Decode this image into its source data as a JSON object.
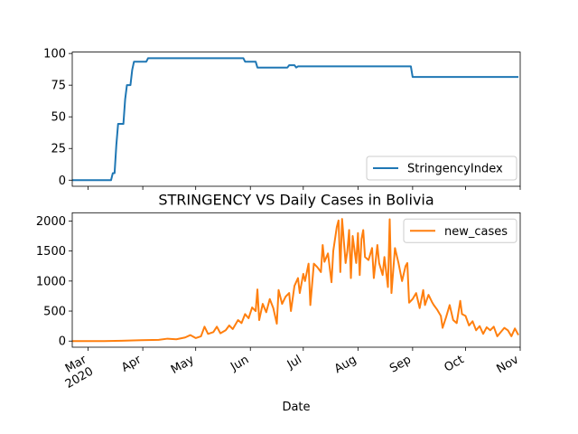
{
  "chart_data": [
    {
      "type": "line",
      "x": [
        "2020-02-21",
        "2020-03-14",
        "2020-03-15",
        "2020-03-16",
        "2020-03-17",
        "2020-03-18",
        "2020-03-21",
        "2020-03-22",
        "2020-03-23",
        "2020-03-25",
        "2020-03-26",
        "2020-03-27",
        "2020-04-03",
        "2020-04-04",
        "2020-05-28",
        "2020-05-29",
        "2020-06-04",
        "2020-06-05",
        "2020-06-22",
        "2020-06-23",
        "2020-06-26",
        "2020-06-27",
        "2020-06-28",
        "2020-08-31",
        "2020-09-01",
        "2020-10-31"
      ],
      "series": [
        {
          "name": "StringencyIndex",
          "color": "#1f77b4",
          "values": [
            0,
            0,
            5.56,
            5.56,
            27.78,
            44.44,
            44.44,
            63.89,
            75,
            75,
            87.04,
            93.52,
            93.52,
            96.3,
            96.3,
            93.52,
            93.52,
            88.89,
            88.89,
            90.74,
            90.74,
            88.89,
            89.81,
            89.81,
            81.48,
            81.48
          ]
        }
      ],
      "xlim": [
        "2020-02-21",
        "2020-11-01"
      ],
      "xticks": [
        "2020-03-01",
        "2020-04-01",
        "2020-05-01",
        "2020-06-01",
        "2020-07-01",
        "2020-08-01",
        "2020-09-01",
        "2020-10-01",
        "2020-11-01"
      ],
      "ylim": [
        -4.8,
        101.1
      ],
      "yticks": [
        0,
        25,
        50,
        75,
        100
      ],
      "legend": "lower right"
    },
    {
      "type": "line",
      "title": "STRINGENCY VS Daily Cases in Bolivia",
      "xlabel": "Date",
      "x": [
        "2020-02-21",
        "2020-03-10",
        "2020-03-20",
        "2020-03-31",
        "2020-04-10",
        "2020-04-15",
        "2020-04-20",
        "2020-04-25",
        "2020-04-28",
        "2020-05-01",
        "2020-05-04",
        "2020-05-06",
        "2020-05-08",
        "2020-05-11",
        "2020-05-13",
        "2020-05-15",
        "2020-05-18",
        "2020-05-20",
        "2020-05-22",
        "2020-05-25",
        "2020-05-27",
        "2020-05-29",
        "2020-05-31",
        "2020-06-02",
        "2020-06-04",
        "2020-06-05",
        "2020-06-06",
        "2020-06-08",
        "2020-06-10",
        "2020-06-12",
        "2020-06-14",
        "2020-06-16",
        "2020-06-17",
        "2020-06-19",
        "2020-06-21",
        "2020-06-23",
        "2020-06-24",
        "2020-06-26",
        "2020-06-28",
        "2020-06-29",
        "2020-07-01",
        "2020-07-02",
        "2020-07-04",
        "2020-07-05",
        "2020-07-07",
        "2020-07-09",
        "2020-07-11",
        "2020-07-12",
        "2020-07-13",
        "2020-07-15",
        "2020-07-17",
        "2020-07-18",
        "2020-07-20",
        "2020-07-21",
        "2020-07-22",
        "2020-07-23",
        "2020-07-25",
        "2020-07-26",
        "2020-07-27",
        "2020-07-28",
        "2020-07-29",
        "2020-07-31",
        "2020-08-01",
        "2020-08-02",
        "2020-08-03",
        "2020-08-04",
        "2020-08-05",
        "2020-08-07",
        "2020-08-09",
        "2020-08-10",
        "2020-08-12",
        "2020-08-13",
        "2020-08-15",
        "2020-08-16",
        "2020-08-18",
        "2020-08-19",
        "2020-08-20",
        "2020-08-22",
        "2020-08-24",
        "2020-08-26",
        "2020-08-28",
        "2020-08-29",
        "2020-08-30",
        "2020-09-01",
        "2020-09-03",
        "2020-09-05",
        "2020-09-07",
        "2020-09-08",
        "2020-09-10",
        "2020-09-12",
        "2020-09-13",
        "2020-09-15",
        "2020-09-17",
        "2020-09-18",
        "2020-09-20",
        "2020-09-22",
        "2020-09-24",
        "2020-09-26",
        "2020-09-28",
        "2020-09-29",
        "2020-10-01",
        "2020-10-03",
        "2020-10-05",
        "2020-10-07",
        "2020-10-09",
        "2020-10-11",
        "2020-10-13",
        "2020-10-15",
        "2020-10-17",
        "2020-10-19",
        "2020-10-21",
        "2020-10-23",
        "2020-10-25",
        "2020-10-27",
        "2020-10-29",
        "2020-10-31"
      ],
      "series": [
        {
          "name": "new_cases",
          "color": "#ff7f0e",
          "values": [
            0,
            0,
            5,
            15,
            20,
            40,
            30,
            60,
            100,
            50,
            80,
            240,
            120,
            150,
            240,
            130,
            180,
            260,
            200,
            350,
            300,
            450,
            380,
            560,
            500,
            860,
            350,
            620,
            480,
            700,
            550,
            290,
            850,
            620,
            740,
            800,
            500,
            920,
            1050,
            800,
            1120,
            1000,
            1290,
            600,
            1290,
            1230,
            1150,
            1600,
            1320,
            1460,
            980,
            1500,
            1900,
            2010,
            1150,
            2036,
            1300,
            1500,
            1850,
            1050,
            1750,
            1300,
            1800,
            1100,
            1700,
            1850,
            1400,
            1350,
            1550,
            1050,
            1600,
            1300,
            1100,
            1400,
            900,
            2030,
            800,
            1550,
            1300,
            1000,
            1250,
            1300,
            640,
            700,
            800,
            550,
            850,
            600,
            770,
            650,
            600,
            520,
            420,
            220,
            400,
            600,
            350,
            300,
            670,
            450,
            420,
            260,
            330,
            180,
            250,
            120,
            230,
            180,
            240,
            80,
            150,
            220,
            180,
            80,
            210,
            100
          ]
        }
      ],
      "xlim": [
        "2020-02-21",
        "2020-11-01"
      ],
      "xticks": [
        {
          "value": "2020-03-01",
          "label": "Mar",
          "year": "2020"
        },
        {
          "value": "2020-04-01",
          "label": "Apr"
        },
        {
          "value": "2020-05-01",
          "label": "May"
        },
        {
          "value": "2020-06-01",
          "label": "Jun"
        },
        {
          "value": "2020-07-01",
          "label": "Jul"
        },
        {
          "value": "2020-08-01",
          "label": "Aug"
        },
        {
          "value": "2020-09-01",
          "label": "Sep"
        },
        {
          "value": "2020-10-01",
          "label": "Oct"
        },
        {
          "value": "2020-11-01",
          "label": "Nov"
        }
      ],
      "ylim": [
        -102,
        2138
      ],
      "yticks": [
        0,
        500,
        1000,
        1500,
        2000
      ],
      "legend": "upper right"
    }
  ]
}
